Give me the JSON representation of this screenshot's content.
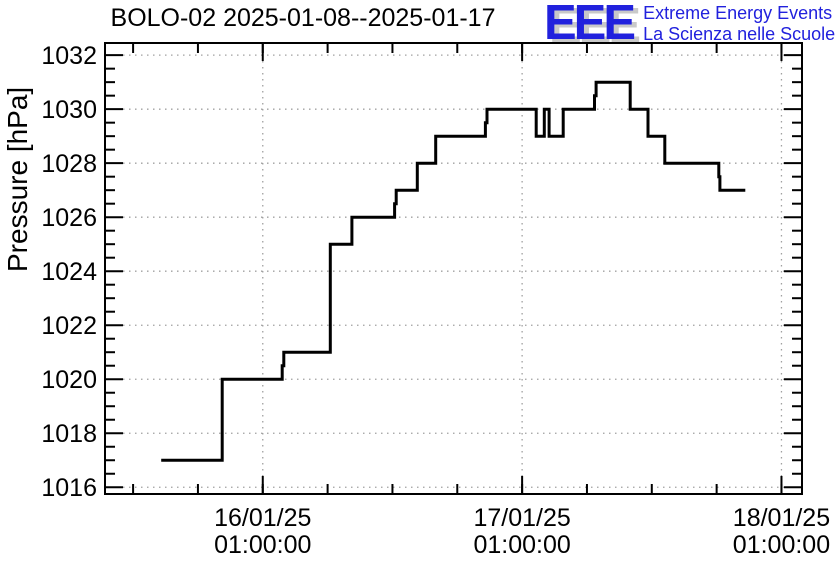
{
  "logo": {
    "acronym": "EEE",
    "line1": "Extreme Energy Events",
    "line2": "La Scienza nelle Scuole",
    "color": "#2121dd",
    "shadow_color": "#c9c9c9"
  },
  "chart_data": {
    "type": "line",
    "style": "step",
    "title": "BOLO-02 2025-01-08--2025-01-17",
    "ylabel": "Pressure [hPa]",
    "xlabel": "",
    "line_color": "#000000",
    "line_width": 3,
    "grid": {
      "show": true,
      "color": "#a0a0a0",
      "style": "dotted"
    },
    "x_epoch": "15/01/25 00:00:00",
    "x_unit": "hours since epoch",
    "xlim": [
      10.4,
      74.9
    ],
    "ylim": [
      1015.75,
      1032.45
    ],
    "x_major_ticks": [
      {
        "t": 25,
        "label_line1": "16/01/25",
        "label_line2": "01:00:00"
      },
      {
        "t": 49,
        "label_line1": "17/01/25",
        "label_line2": "01:00:00"
      },
      {
        "t": 73,
        "label_line1": "18/01/25",
        "label_line2": "01:00:00"
      }
    ],
    "x_minor_ticks": [
      13,
      19,
      25,
      31,
      37,
      43,
      49,
      55,
      61,
      67,
      73
    ],
    "y_major_ticks": [
      1016,
      1018,
      1020,
      1022,
      1024,
      1026,
      1028,
      1030,
      1032
    ],
    "y_minor_step": 0.5,
    "plateaus": [
      [
        15.6,
        21.25,
        1017
      ],
      [
        21.25,
        26.8,
        1020
      ],
      [
        26.8,
        26.95,
        1020.5
      ],
      [
        26.95,
        31.25,
        1021
      ],
      [
        31.25,
        33.25,
        1025
      ],
      [
        33.25,
        37.2,
        1026
      ],
      [
        37.2,
        37.35,
        1026.5
      ],
      [
        37.35,
        39.3,
        1027
      ],
      [
        39.3,
        41.0,
        1028
      ],
      [
        41.0,
        45.6,
        1029
      ],
      [
        45.6,
        45.75,
        1029.5
      ],
      [
        45.75,
        50.3,
        1030
      ],
      [
        50.3,
        51.05,
        1029
      ],
      [
        51.05,
        51.5,
        1030
      ],
      [
        51.5,
        52.8,
        1029
      ],
      [
        52.8,
        55.7,
        1030
      ],
      [
        55.7,
        55.85,
        1030.5
      ],
      [
        55.85,
        59.0,
        1031
      ],
      [
        59.0,
        60.65,
        1030
      ],
      [
        60.65,
        62.2,
        1029
      ],
      [
        62.2,
        67.2,
        1028
      ],
      [
        67.2,
        67.3,
        1027.5
      ],
      [
        67.3,
        69.65,
        1027
      ]
    ]
  }
}
